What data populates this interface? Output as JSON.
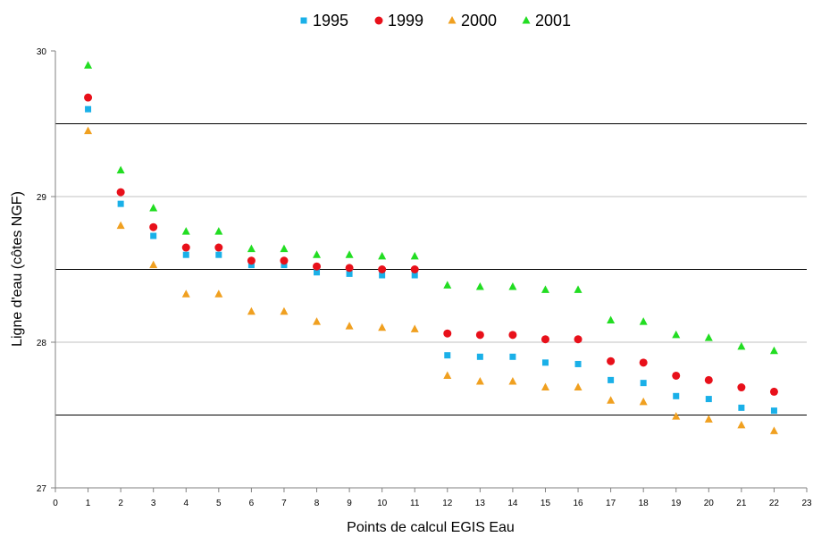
{
  "chart_data": {
    "type": "scatter",
    "xlabel": "Points de calcul EGIS Eau",
    "ylabel": "Ligne d'eau (côtes NGF)",
    "xlim": [
      0,
      23
    ],
    "ylim": [
      27,
      30
    ],
    "x_ticks": [
      "0",
      "1",
      "2",
      "3",
      "4",
      "5",
      "6",
      "7",
      "8",
      "9",
      "10",
      "11",
      "12",
      "13",
      "14",
      "15",
      "16",
      "17",
      "18",
      "19",
      "20",
      "21",
      "22",
      "23"
    ],
    "y_ticks": [
      "27",
      "28",
      "29",
      "30"
    ],
    "gridlines_gray": [
      28,
      29
    ],
    "reference_lines_black": [
      27.5,
      28.5,
      29.5
    ],
    "legend_position": "top-center",
    "x": [
      1,
      2,
      3,
      4,
      5,
      6,
      7,
      8,
      9,
      10,
      11,
      12,
      13,
      14,
      15,
      16,
      17,
      18,
      19,
      20,
      21,
      22
    ],
    "series": [
      {
        "name": "1995",
        "color": "#1ab0e8",
        "marker": "square",
        "values": [
          29.6,
          28.95,
          28.73,
          28.6,
          28.6,
          28.53,
          28.53,
          28.48,
          28.47,
          28.46,
          28.46,
          27.91,
          27.9,
          27.9,
          27.86,
          27.85,
          27.74,
          27.72,
          27.63,
          27.61,
          27.55,
          27.53
        ]
      },
      {
        "name": "1999",
        "color": "#e8101a",
        "marker": "circle",
        "values": [
          29.68,
          29.03,
          28.79,
          28.65,
          28.65,
          28.56,
          28.56,
          28.52,
          28.51,
          28.5,
          28.5,
          28.06,
          28.05,
          28.05,
          28.02,
          28.02,
          27.87,
          27.86,
          27.77,
          27.74,
          27.69,
          27.66
        ]
      },
      {
        "name": "2000",
        "color": "#f0a020",
        "marker": "triangle",
        "values": [
          29.45,
          28.8,
          28.53,
          28.33,
          28.33,
          28.21,
          28.21,
          28.14,
          28.11,
          28.1,
          28.09,
          27.77,
          27.73,
          27.73,
          27.69,
          27.69,
          27.6,
          27.59,
          27.49,
          27.47,
          27.43,
          27.39
        ]
      },
      {
        "name": "2001",
        "color": "#22dd22",
        "marker": "triangle",
        "values": [
          29.9,
          29.18,
          28.92,
          28.76,
          28.76,
          28.64,
          28.64,
          28.6,
          28.6,
          28.59,
          28.59,
          28.39,
          28.38,
          28.38,
          28.36,
          28.36,
          28.15,
          28.14,
          28.05,
          28.03,
          27.97,
          27.94
        ]
      }
    ]
  }
}
